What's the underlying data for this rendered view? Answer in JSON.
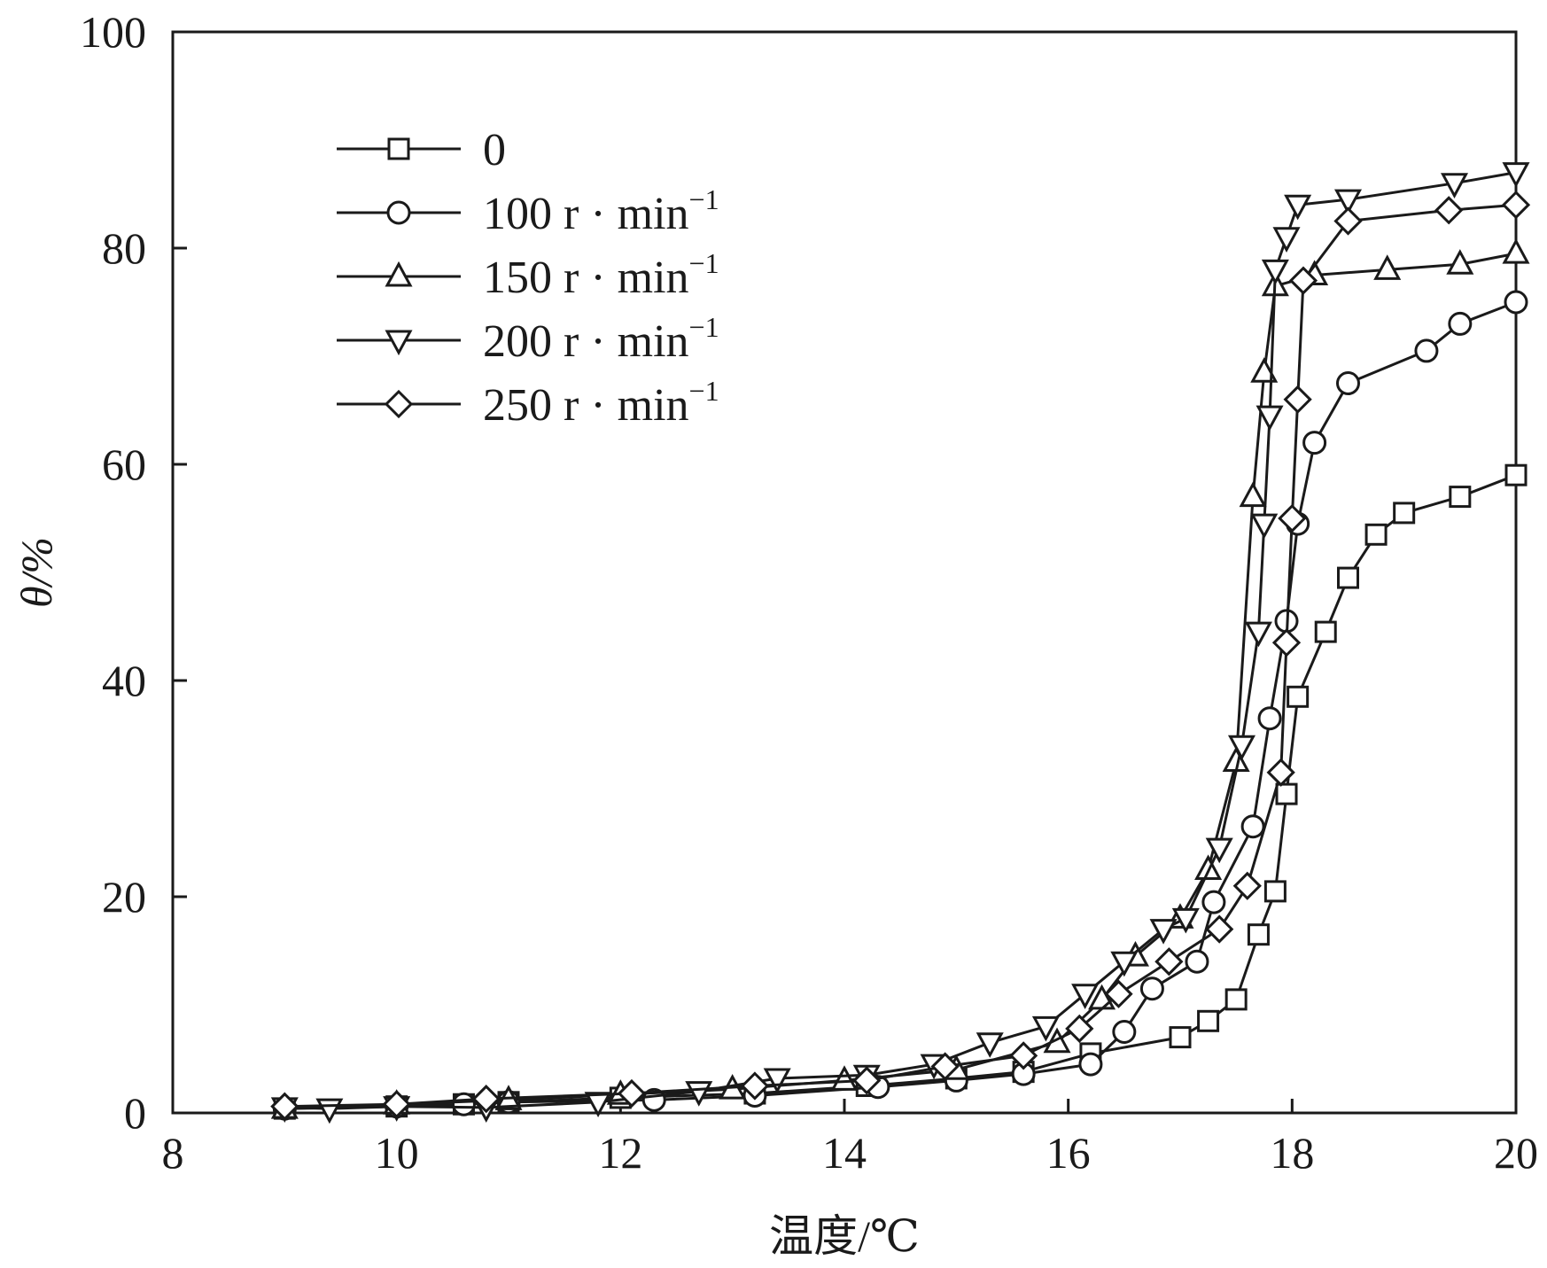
{
  "chart_data": {
    "type": "line",
    "title": "",
    "xlabel": "温度/℃",
    "ylabel": "θ/%",
    "xlim": [
      8,
      20
    ],
    "ylim": [
      0,
      100
    ],
    "xticks": [
      "8",
      "10",
      "12",
      "14",
      "16",
      "18",
      "20"
    ],
    "yticks": [
      "0",
      "20",
      "40",
      "60",
      "80",
      "100"
    ],
    "grid": false,
    "legend_position": "top-left",
    "series": [
      {
        "name": "0",
        "marker": "square",
        "x": [
          9.0,
          10.0,
          10.6,
          11.0,
          12.0,
          13.2,
          14.2,
          15.0,
          15.6,
          16.2,
          17.0,
          17.25,
          17.5,
          17.7,
          17.85,
          17.95,
          18.05,
          18.3,
          18.5,
          18.75,
          19.0,
          19.5,
          20.0
        ],
        "y": [
          0.4,
          0.6,
          0.8,
          1.0,
          1.4,
          1.8,
          2.5,
          3.2,
          3.8,
          5.5,
          7.0,
          8.5,
          10.5,
          16.5,
          20.5,
          29.5,
          38.5,
          44.5,
          49.5,
          53.5,
          55.5,
          57.0,
          59.0
        ]
      },
      {
        "name": "100 r · min",
        "name_superscript": "−1",
        "marker": "circle",
        "x": [
          9.0,
          10.0,
          10.6,
          11.0,
          12.3,
          13.2,
          14.3,
          15.0,
          15.6,
          16.2,
          16.5,
          16.75,
          17.15,
          17.3,
          17.65,
          17.8,
          17.95,
          18.05,
          18.2,
          18.5,
          19.2,
          19.5,
          20.0
        ],
        "y": [
          0.4,
          0.6,
          0.8,
          1.0,
          1.2,
          1.6,
          2.4,
          3.0,
          3.6,
          4.5,
          7.5,
          11.5,
          14.0,
          19.5,
          26.5,
          36.5,
          45.5,
          54.5,
          62.0,
          67.5,
          70.5,
          73.0,
          75.0
        ]
      },
      {
        "name": "150 r · min",
        "name_superscript": "−1",
        "marker": "triangle-up",
        "x": [
          9.0,
          10.0,
          11.0,
          12.0,
          13.0,
          14.0,
          15.0,
          15.9,
          16.3,
          16.6,
          17.0,
          17.25,
          17.5,
          17.65,
          17.75,
          17.85,
          18.2,
          18.85,
          19.5,
          20.0
        ],
        "y": [
          0.4,
          0.8,
          1.2,
          1.7,
          2.2,
          3.0,
          4.0,
          6.5,
          10.5,
          14.5,
          18.0,
          22.5,
          32.5,
          57.0,
          68.5,
          76.5,
          77.5,
          78.0,
          78.5,
          79.5
        ]
      },
      {
        "name": "200 r · min",
        "name_superscript": "−1",
        "marker": "triangle-down",
        "x": [
          9.0,
          9.4,
          10.0,
          10.8,
          11.8,
          12.7,
          13.4,
          14.2,
          14.8,
          15.3,
          15.8,
          16.15,
          16.5,
          16.85,
          17.05,
          17.35,
          17.55,
          17.7,
          17.75,
          17.8,
          17.85,
          17.95,
          18.05,
          18.5,
          19.45,
          20.0
        ],
        "y": [
          0.5,
          0.4,
          0.6,
          0.5,
          1.0,
          2.0,
          3.2,
          3.5,
          4.5,
          6.5,
          8.0,
          11.0,
          14.0,
          17.0,
          18.0,
          24.5,
          34.0,
          44.5,
          54.5,
          64.5,
          78.0,
          81.0,
          84.0,
          84.5,
          86.0,
          87.0
        ]
      },
      {
        "name": "250 r · min",
        "name_superscript": "−1",
        "marker": "diamond",
        "x": [
          9.0,
          10.0,
          10.8,
          12.1,
          13.2,
          14.2,
          14.9,
          15.6,
          16.1,
          16.45,
          16.9,
          17.35,
          17.6,
          17.9,
          17.95,
          18.0,
          18.05,
          18.1,
          18.5,
          19.4,
          20.0
        ],
        "y": [
          0.6,
          0.8,
          1.3,
          1.8,
          2.5,
          3.0,
          4.3,
          5.3,
          7.8,
          11.0,
          14.0,
          17.0,
          21.0,
          31.5,
          43.5,
          55.0,
          66.0,
          77.0,
          82.5,
          83.5,
          84.0
        ]
      }
    ]
  }
}
